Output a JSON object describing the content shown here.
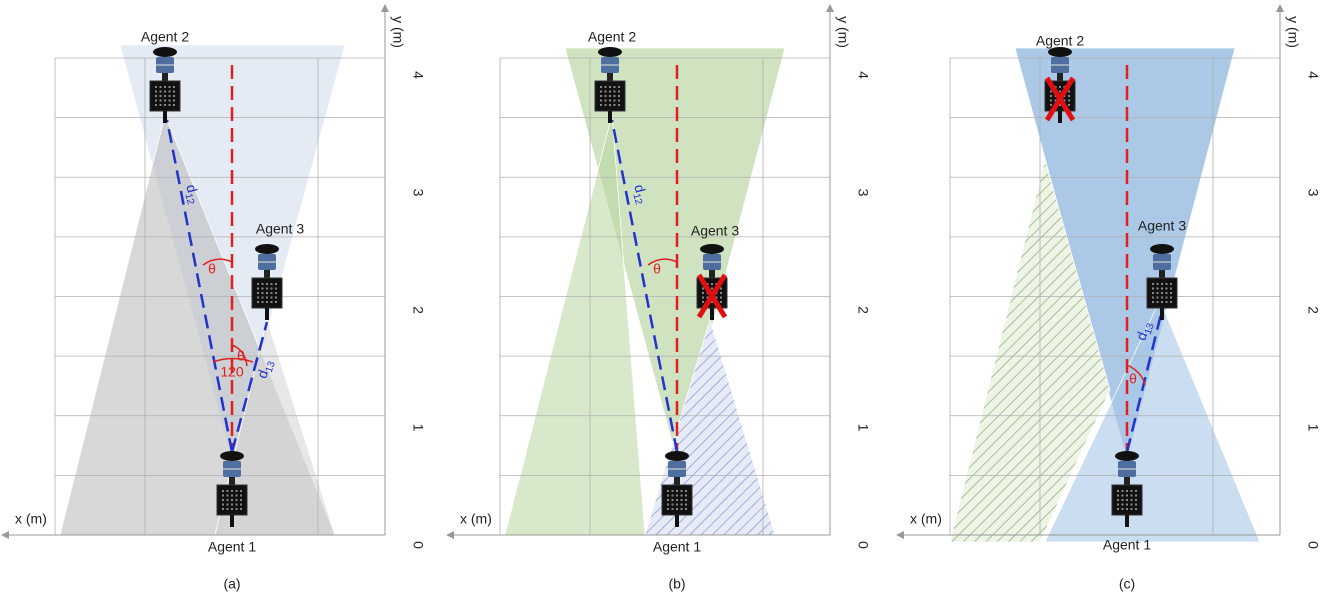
{
  "panels": [
    {
      "label": "(a)",
      "agents": {
        "a1": "Agent 1",
        "a2": "Agent 2",
        "a3": "Agent 3"
      },
      "x_axis": "x (m)",
      "y_axis": "y (m)",
      "y_ticks": [
        0,
        1,
        2,
        3,
        4
      ],
      "distances": [
        {
          "d": "d",
          "sub": "12"
        },
        {
          "d": "d",
          "sub": "13"
        }
      ],
      "angles": [
        "θ",
        "θ",
        "120"
      ]
    },
    {
      "label": "(b)",
      "agents": {
        "a1": "Agent 1",
        "a2": "Agent 2",
        "a3": "Agent 3"
      },
      "x_axis": "x (m)",
      "y_axis": "y (m)",
      "y_ticks": [
        0,
        1,
        2,
        3,
        4
      ],
      "distances": [
        {
          "d": "d",
          "sub": "12"
        }
      ],
      "angles": [
        "θ"
      ]
    },
    {
      "label": "(c)",
      "agents": {
        "a1": "Agent 1",
        "a2": "Agent 2",
        "a3": "Agent 3"
      },
      "x_axis": "x (m)",
      "y_axis": "y (m)",
      "y_ticks": [
        0,
        1,
        2,
        3,
        4
      ],
      "distances": [
        {
          "d": "d",
          "sub": "13"
        }
      ],
      "angles": [
        "θ"
      ]
    }
  ]
}
